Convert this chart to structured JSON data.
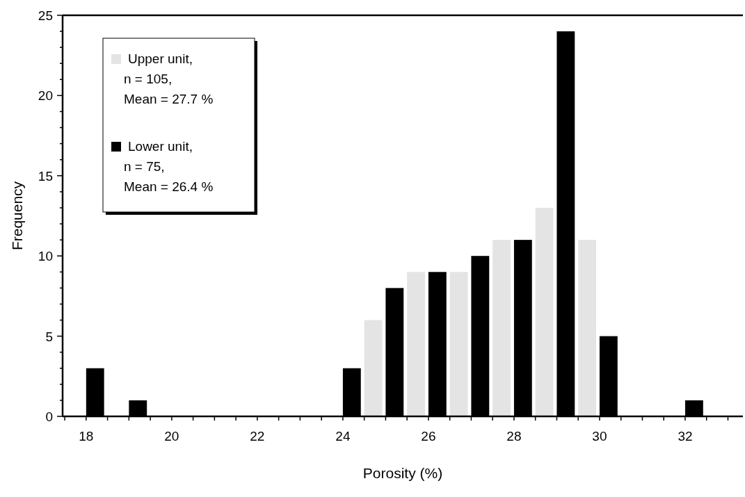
{
  "chart_data": {
    "type": "bar",
    "xlabel": "Porosity (%)",
    "ylabel": "Frequency",
    "xlim": [
      17.45,
      33.35
    ],
    "xticks": [
      {
        "value": 17.5,
        "label": null
      },
      18,
      {
        "value": 18.5,
        "label": null
      },
      {
        "value": 19,
        "label": null
      },
      {
        "value": 19.5,
        "label": null
      },
      20,
      {
        "value": 20.5,
        "label": null
      },
      {
        "value": 21,
        "label": null
      },
      {
        "value": 21.5,
        "label": null
      },
      22,
      {
        "value": 22.5,
        "label": null
      },
      {
        "value": 23,
        "label": null
      },
      {
        "value": 23.5,
        "label": null
      },
      24,
      {
        "value": 24.5,
        "label": null
      },
      {
        "value": 25,
        "label": null
      },
      {
        "value": 25.5,
        "label": null
      },
      26,
      {
        "value": 26.5,
        "label": null
      },
      {
        "value": 27,
        "label": null
      },
      {
        "value": 27.5,
        "label": null
      },
      28,
      {
        "value": 28.5,
        "label": null
      },
      {
        "value": 29,
        "label": null
      },
      {
        "value": 29.5,
        "label": null
      },
      30,
      {
        "value": 30.5,
        "label": null
      },
      {
        "value": 31,
        "label": null
      },
      {
        "value": 31.5,
        "label": null
      },
      32,
      {
        "value": 32.5,
        "label": null
      },
      {
        "value": 33,
        "label": null
      }
    ],
    "ylim": [
      0,
      25
    ],
    "yticks": [
      0,
      {
        "value": 1,
        "label": null
      },
      {
        "value": 2,
        "label": null
      },
      {
        "value": 3,
        "label": null
      },
      {
        "value": 4,
        "label": null
      },
      5,
      {
        "value": 6,
        "label": null
      },
      {
        "value": 7,
        "label": null
      },
      {
        "value": 8,
        "label": null
      },
      {
        "value": 9,
        "label": null
      },
      10,
      {
        "value": 11,
        "label": null
      },
      {
        "value": 12,
        "label": null
      },
      {
        "value": 13,
        "label": null
      },
      {
        "value": 14,
        "label": null
      },
      15,
      {
        "value": 16,
        "label": null
      },
      {
        "value": 17,
        "label": null
      },
      {
        "value": 18,
        "label": null
      },
      {
        "value": 19,
        "label": null
      },
      20,
      {
        "value": 21,
        "label": null
      },
      {
        "value": 22,
        "label": null
      },
      {
        "value": 23,
        "label": null
      },
      {
        "value": 24,
        "label": null
      },
      25
    ],
    "legend": "top left",
    "grid": false,
    "series": [
      {
        "name": "Upper unit,\nn = 105,\nMean = 27.7 %",
        "color": "#e4e4e4",
        "x": [
          24.5,
          25.5,
          26.5,
          27.5,
          28.5,
          29.5
        ],
        "values": [
          6,
          9,
          9,
          11,
          13,
          11
        ]
      },
      {
        "name": "Lower unit,\nn = 75,\nMean = 26.4 %",
        "color": "#000000",
        "x": [
          18,
          19,
          24,
          25,
          26,
          27,
          28,
          29,
          30,
          32
        ],
        "values": [
          3,
          1,
          3,
          8,
          9,
          10,
          11,
          24,
          5,
          1
        ]
      }
    ]
  }
}
